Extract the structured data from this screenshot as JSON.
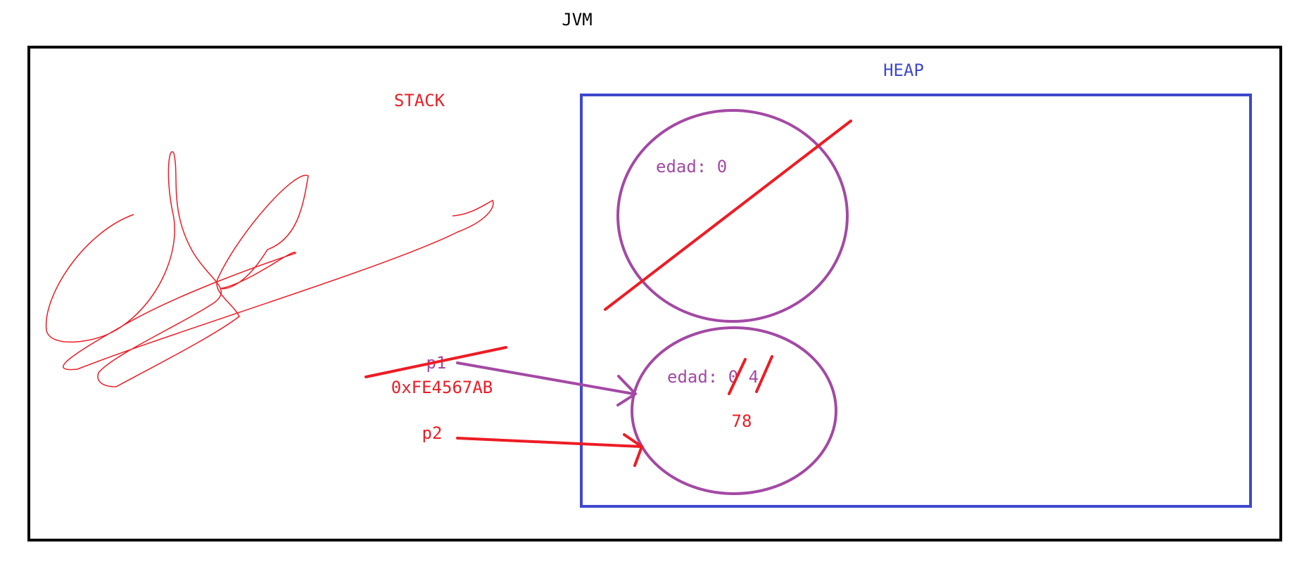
{
  "diagram": {
    "title": "JVM",
    "stack_label": "STACK",
    "heap_label": "HEAP",
    "objects": [
      {
        "field": "edad: 0",
        "crossed_out": true
      },
      {
        "field": "edad: 0 4",
        "value": "78"
      }
    ],
    "references": [
      {
        "name": "p1",
        "address": "0xFE4567AB",
        "target": "object-2"
      },
      {
        "name": "p2",
        "target": "object-2"
      }
    ],
    "colors": {
      "jvm_border": "#000000",
      "heap": "#3f48cc",
      "stack": "#ed1c24",
      "object": "#a349a4"
    }
  }
}
